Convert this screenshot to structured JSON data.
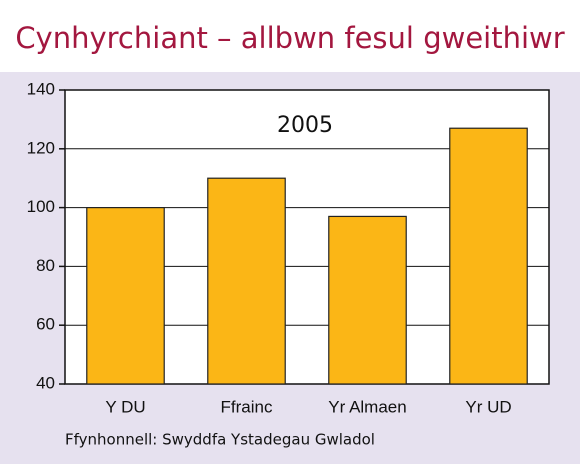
{
  "chart_data": {
    "type": "bar",
    "title": "Cynhyrchiant – allbwn fesul gweithiwr",
    "annotation": "2005",
    "source": "Ffynhonnell: Swyddfa Ystadegau Gwladol",
    "categories": [
      "Y DU",
      "Ffrainc",
      "Yr Almaen",
      "Yr UD"
    ],
    "values": [
      100,
      110,
      97,
      127
    ],
    "color": "#fbb616",
    "ylim": [
      40,
      140
    ],
    "yticks": [
      40,
      60,
      80,
      100,
      120,
      140
    ],
    "grid": true
  }
}
